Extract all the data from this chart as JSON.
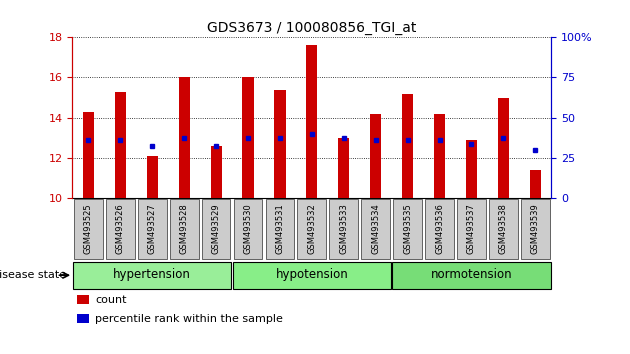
{
  "title": "GDS3673 / 100080856_TGI_at",
  "samples": [
    "GSM493525",
    "GSM493526",
    "GSM493527",
    "GSM493528",
    "GSM493529",
    "GSM493530",
    "GSM493531",
    "GSM493532",
    "GSM493533",
    "GSM493534",
    "GSM493535",
    "GSM493536",
    "GSM493537",
    "GSM493538",
    "GSM493539"
  ],
  "bar_heights": [
    14.3,
    15.3,
    12.1,
    16.0,
    12.6,
    16.0,
    15.4,
    17.6,
    13.0,
    14.2,
    15.2,
    14.2,
    12.9,
    15.0,
    11.4
  ],
  "blue_dot_y": [
    12.9,
    12.9,
    12.6,
    13.0,
    12.6,
    13.0,
    13.0,
    13.2,
    13.0,
    12.9,
    12.9,
    12.9,
    12.7,
    13.0,
    12.4
  ],
  "bar_color": "#cc0000",
  "dot_color": "#0000cc",
  "ymin": 10,
  "ymax": 18,
  "yticks": [
    10,
    12,
    14,
    16,
    18
  ],
  "right_yticks": [
    0,
    25,
    50,
    75,
    100
  ],
  "right_yticklabels": [
    "0",
    "25",
    "50",
    "75",
    "100%"
  ],
  "groups": [
    {
      "label": "hypertension",
      "start": 0,
      "end": 5,
      "color": "#99ee99"
    },
    {
      "label": "hypotension",
      "start": 5,
      "end": 10,
      "color": "#88ee88"
    },
    {
      "label": "normotension",
      "start": 10,
      "end": 15,
      "color": "#77dd77"
    }
  ],
  "disease_state_label": "disease state",
  "legend_items": [
    {
      "label": "count",
      "color": "#cc0000"
    },
    {
      "label": "percentile rank within the sample",
      "color": "#0000cc"
    }
  ],
  "bar_width": 0.35,
  "bg_color": "#ffffff",
  "plot_bg_color": "#ffffff",
  "tick_label_color_left": "#cc0000",
  "tick_label_color_right": "#0000cc",
  "grid_color": "#000000",
  "xtick_bg_color": "#cccccc",
  "group_border_color": "#000000"
}
